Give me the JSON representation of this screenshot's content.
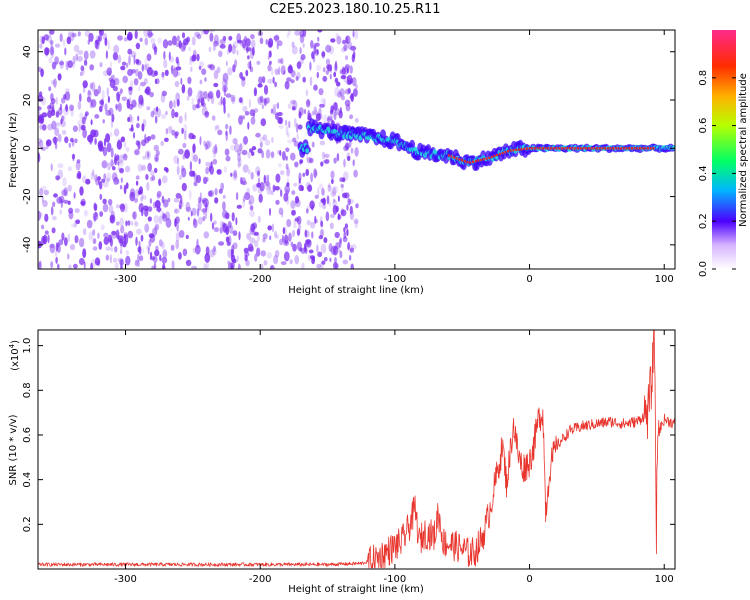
{
  "title": "C2E5.2023.180.10.25.R11",
  "colors": {
    "spectrogram_speckle": "#7b2cf0",
    "spectrogram_core": "#23d6e0",
    "spectrogram_peak": "#e02a2a",
    "snr_line": "#e8352e"
  },
  "chart_data": [
    {
      "type": "heatmap",
      "title": "C2E5.2023.180.10.25.R11",
      "xlabel": "Height of straight line (km)",
      "ylabel": "Frequency (Hz)",
      "xlim": [
        -365,
        108
      ],
      "ylim": [
        -50,
        49
      ],
      "x_ticks": [
        -300,
        -200,
        -100,
        0,
        100
      ],
      "y_ticks": [
        -40,
        -20,
        0,
        20,
        40
      ],
      "ridge": {
        "description_points": [
          {
            "x": -165,
            "y": 9
          },
          {
            "x": -140,
            "y": 6
          },
          {
            "x": -120,
            "y": 5
          },
          {
            "x": -100,
            "y": 3
          },
          {
            "x": -80,
            "y": -2
          },
          {
            "x": -60,
            "y": -3
          },
          {
            "x": -45,
            "y": -6
          },
          {
            "x": -30,
            "y": -4
          },
          {
            "x": -15,
            "y": -1
          },
          {
            "x": 0,
            "y": 0
          },
          {
            "x": 50,
            "y": 0
          },
          {
            "x": 92,
            "y": 0
          },
          {
            "x": 108,
            "y": 0
          }
        ]
      },
      "colorbar": {
        "label": "Normalized spectral amplitude",
        "range": [
          0,
          1
        ],
        "ticks": [
          0.0,
          0.2,
          0.4,
          0.6,
          0.8
        ]
      }
    },
    {
      "type": "line",
      "xlabel": "Height of straight line (km)",
      "ylabel": "SNR (10 * v/v)",
      "y_multiplier_label": "(x10",
      "y_multiplier_exponent": "4",
      "y_multiplier_close": ")",
      "xlim": [
        -365,
        108
      ],
      "ylim": [
        0.0,
        1.07
      ],
      "x_ticks": [
        -300,
        -200,
        -100,
        0,
        100
      ],
      "y_ticks": [
        0.2,
        0.4,
        0.6,
        0.8,
        1.0
      ],
      "series": [
        {
          "values_description": "x in km, y in units of 10^4",
          "points": [
            [
              -365,
              0.02
            ],
            [
              -300,
              0.02
            ],
            [
              -250,
              0.02
            ],
            [
              -200,
              0.02
            ],
            [
              -150,
              0.02
            ],
            [
              -125,
              0.025
            ],
            [
              -115,
              0.04
            ],
            [
              -105,
              0.08
            ],
            [
              -95,
              0.12
            ],
            [
              -90,
              0.18
            ],
            [
              -85,
              0.27
            ],
            [
              -82,
              0.12
            ],
            [
              -78,
              0.16
            ],
            [
              -70,
              0.15
            ],
            [
              -68,
              0.26
            ],
            [
              -64,
              0.12
            ],
            [
              -58,
              0.11
            ],
            [
              -50,
              0.09
            ],
            [
              -45,
              0.07
            ],
            [
              -40,
              0.08
            ],
            [
              -35,
              0.14
            ],
            [
              -30,
              0.25
            ],
            [
              -25,
              0.4
            ],
            [
              -20,
              0.55
            ],
            [
              -17,
              0.38
            ],
            [
              -12,
              0.65
            ],
            [
              -8,
              0.5
            ],
            [
              -5,
              0.45
            ],
            [
              0,
              0.48
            ],
            [
              3,
              0.55
            ],
            [
              7,
              0.68
            ],
            [
              10,
              0.7
            ],
            [
              12,
              0.25
            ],
            [
              15,
              0.45
            ],
            [
              20,
              0.55
            ],
            [
              30,
              0.62
            ],
            [
              40,
              0.64
            ],
            [
              50,
              0.65
            ],
            [
              60,
              0.66
            ],
            [
              70,
              0.65
            ],
            [
              80,
              0.66
            ],
            [
              88,
              0.7
            ],
            [
              91,
              0.86
            ],
            [
              93,
              1.07
            ],
            [
              94,
              0.05
            ],
            [
              95,
              0.6
            ],
            [
              100,
              0.67
            ],
            [
              108,
              0.65
            ]
          ]
        }
      ]
    }
  ]
}
